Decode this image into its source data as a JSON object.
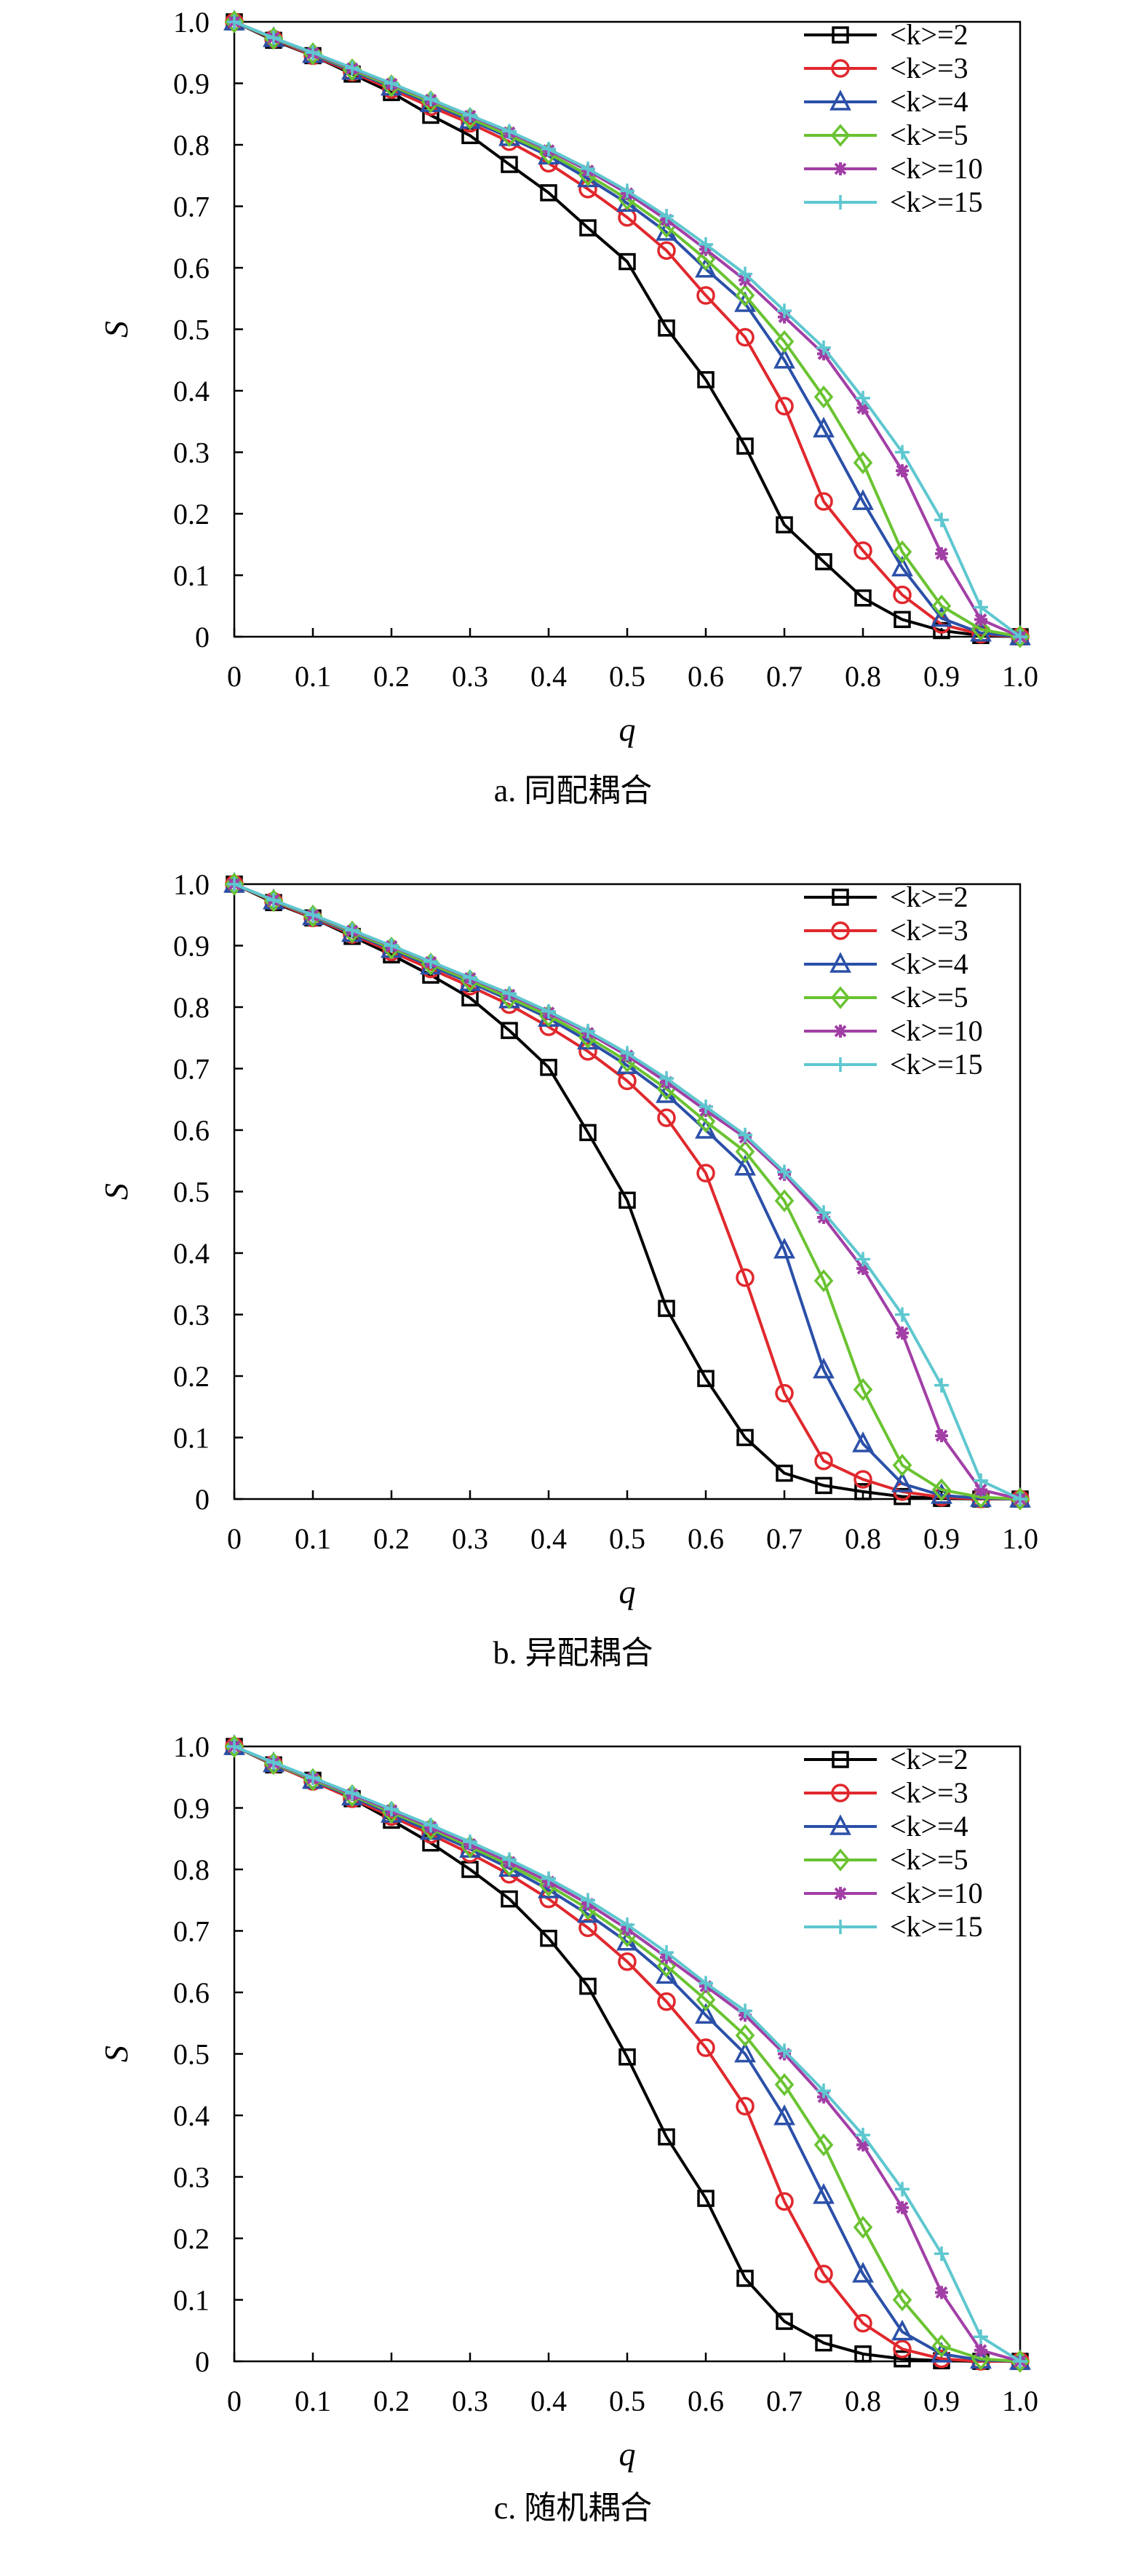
{
  "chart_data": [
    {
      "type": "line",
      "caption": "a. 同配耦合",
      "xlabel": "q",
      "ylabel": "S",
      "xlim": [
        0,
        1.0
      ],
      "ylim": [
        0,
        1.0
      ],
      "x_ticks": [
        "0",
        "0.1",
        "0.2",
        "0.3",
        "0.4",
        "0.5",
        "0.6",
        "0.7",
        "0.8",
        "0.9",
        "1.0"
      ],
      "y_ticks": [
        "0",
        "0.1",
        "0.2",
        "0.3",
        "0.4",
        "0.5",
        "0.6",
        "0.7",
        "0.8",
        "0.9",
        "1.0"
      ],
      "legend_position": "top-right",
      "x": [
        0,
        0.05,
        0.1,
        0.15,
        0.2,
        0.25,
        0.3,
        0.35,
        0.4,
        0.45,
        0.5,
        0.55,
        0.6,
        0.65,
        0.7,
        0.75,
        0.8,
        0.85,
        0.9,
        0.95,
        1.0
      ],
      "series": [
        {
          "name": "<k>=2",
          "color": "#000000",
          "marker": "square",
          "values": [
            1.0,
            0.97,
            0.945,
            0.915,
            0.885,
            0.848,
            0.815,
            0.768,
            0.722,
            0.665,
            0.61,
            0.502,
            0.418,
            0.31,
            0.182,
            0.122,
            0.063,
            0.028,
            0.01,
            0.002,
            0.0
          ]
        },
        {
          "name": "<k>=3",
          "color": "#e0282d",
          "marker": "circle",
          "values": [
            1.0,
            0.972,
            0.945,
            0.918,
            0.89,
            0.862,
            0.835,
            0.805,
            0.77,
            0.728,
            0.682,
            0.628,
            0.555,
            0.487,
            0.375,
            0.22,
            0.14,
            0.068,
            0.02,
            0.004,
            0.0
          ]
        },
        {
          "name": "<k>=4",
          "color": "#2b50a8",
          "marker": "triangle",
          "values": [
            1.0,
            0.973,
            0.947,
            0.92,
            0.894,
            0.867,
            0.84,
            0.812,
            0.782,
            0.745,
            0.705,
            0.658,
            0.598,
            0.542,
            0.45,
            0.338,
            0.22,
            0.112,
            0.03,
            0.006,
            0.0
          ]
        },
        {
          "name": "<k>=5",
          "color": "#6ac332",
          "marker": "diamond",
          "values": [
            1.0,
            0.973,
            0.948,
            0.922,
            0.896,
            0.87,
            0.843,
            0.815,
            0.786,
            0.751,
            0.712,
            0.667,
            0.614,
            0.555,
            0.48,
            0.39,
            0.283,
            0.138,
            0.05,
            0.012,
            0.0
          ]
        },
        {
          "name": "<k>=10",
          "color": "#a23fa6",
          "marker": "star",
          "values": [
            1.0,
            0.974,
            0.949,
            0.924,
            0.899,
            0.873,
            0.847,
            0.82,
            0.791,
            0.758,
            0.721,
            0.678,
            0.63,
            0.58,
            0.52,
            0.46,
            0.372,
            0.27,
            0.135,
            0.028,
            0.0
          ]
        },
        {
          "name": "<k>=15",
          "color": "#5ec7cf",
          "marker": "plus",
          "values": [
            1.0,
            0.974,
            0.95,
            0.925,
            0.9,
            0.874,
            0.848,
            0.822,
            0.793,
            0.761,
            0.725,
            0.684,
            0.638,
            0.59,
            0.53,
            0.47,
            0.388,
            0.3,
            0.19,
            0.048,
            0.0
          ]
        }
      ]
    },
    {
      "type": "line",
      "caption": "b. 异配耦合",
      "xlabel": "q",
      "ylabel": "S",
      "xlim": [
        0,
        1.0
      ],
      "ylim": [
        0,
        1.0
      ],
      "x_ticks": [
        "0",
        "0.1",
        "0.2",
        "0.3",
        "0.4",
        "0.5",
        "0.6",
        "0.7",
        "0.8",
        "0.9",
        "1.0"
      ],
      "y_ticks": [
        "0",
        "0.1",
        "0.2",
        "0.3",
        "0.4",
        "0.5",
        "0.6",
        "0.7",
        "0.8",
        "0.9",
        "1.0"
      ],
      "legend_position": "top-right",
      "x": [
        0,
        0.05,
        0.1,
        0.15,
        0.2,
        0.25,
        0.3,
        0.35,
        0.4,
        0.45,
        0.5,
        0.55,
        0.6,
        0.65,
        0.7,
        0.75,
        0.8,
        0.85,
        0.9,
        0.95,
        1.0
      ],
      "series": [
        {
          "name": "<k>=2",
          "color": "#000000",
          "marker": "square",
          "values": [
            1.0,
            0.97,
            0.945,
            0.915,
            0.885,
            0.852,
            0.815,
            0.762,
            0.702,
            0.596,
            0.486,
            0.31,
            0.196,
            0.1,
            0.042,
            0.022,
            0.012,
            0.004,
            0.001,
            0.0,
            0.0
          ]
        },
        {
          "name": "<k>=3",
          "color": "#e0282d",
          "marker": "circle",
          "values": [
            1.0,
            0.972,
            0.945,
            0.918,
            0.89,
            0.862,
            0.834,
            0.804,
            0.768,
            0.728,
            0.68,
            0.62,
            0.53,
            0.36,
            0.172,
            0.062,
            0.032,
            0.012,
            0.003,
            0.0,
            0.0
          ]
        },
        {
          "name": "<k>=4",
          "color": "#2b50a8",
          "marker": "triangle",
          "values": [
            1.0,
            0.973,
            0.947,
            0.92,
            0.894,
            0.867,
            0.84,
            0.812,
            0.782,
            0.745,
            0.705,
            0.658,
            0.6,
            0.54,
            0.405,
            0.21,
            0.09,
            0.025,
            0.006,
            0.001,
            0.0
          ]
        },
        {
          "name": "<k>=5",
          "color": "#6ac332",
          "marker": "diamond",
          "values": [
            1.0,
            0.973,
            0.948,
            0.922,
            0.896,
            0.87,
            0.843,
            0.815,
            0.786,
            0.751,
            0.712,
            0.667,
            0.614,
            0.565,
            0.485,
            0.355,
            0.178,
            0.055,
            0.015,
            0.003,
            0.0
          ]
        },
        {
          "name": "<k>=10",
          "color": "#a23fa6",
          "marker": "star",
          "values": [
            1.0,
            0.974,
            0.949,
            0.924,
            0.899,
            0.873,
            0.847,
            0.82,
            0.791,
            0.758,
            0.721,
            0.678,
            0.632,
            0.588,
            0.528,
            0.458,
            0.375,
            0.27,
            0.103,
            0.015,
            0.0
          ]
        },
        {
          "name": "<k>=15",
          "color": "#5ec7cf",
          "marker": "plus",
          "values": [
            1.0,
            0.974,
            0.95,
            0.925,
            0.9,
            0.874,
            0.848,
            0.822,
            0.793,
            0.761,
            0.725,
            0.684,
            0.638,
            0.592,
            0.532,
            0.466,
            0.39,
            0.3,
            0.185,
            0.03,
            0.0
          ]
        }
      ]
    },
    {
      "type": "line",
      "caption": "c. 随机耦合",
      "xlabel": "q",
      "ylabel": "S",
      "xlim": [
        0,
        1.0
      ],
      "ylim": [
        0,
        1.0
      ],
      "x_ticks": [
        "0",
        "0.1",
        "0.2",
        "0.3",
        "0.4",
        "0.5",
        "0.6",
        "0.7",
        "0.8",
        "0.9",
        "1.0"
      ],
      "y_ticks": [
        "0",
        "0.1",
        "0.2",
        "0.3",
        "0.4",
        "0.5",
        "0.6",
        "0.7",
        "0.8",
        "0.9",
        "1.0"
      ],
      "legend_position": "top-right",
      "x": [
        0,
        0.05,
        0.1,
        0.15,
        0.2,
        0.25,
        0.3,
        0.35,
        0.4,
        0.45,
        0.5,
        0.55,
        0.6,
        0.65,
        0.7,
        0.75,
        0.8,
        0.85,
        0.9,
        0.95,
        1.0
      ],
      "series": [
        {
          "name": "<k>=2",
          "color": "#000000",
          "marker": "square",
          "values": [
            1.0,
            0.97,
            0.945,
            0.915,
            0.88,
            0.843,
            0.8,
            0.752,
            0.688,
            0.61,
            0.495,
            0.365,
            0.265,
            0.135,
            0.065,
            0.03,
            0.012,
            0.004,
            0.001,
            0.0,
            0.0
          ]
        },
        {
          "name": "<k>=3",
          "color": "#e0282d",
          "marker": "circle",
          "values": [
            1.0,
            0.971,
            0.943,
            0.915,
            0.886,
            0.857,
            0.826,
            0.792,
            0.752,
            0.705,
            0.65,
            0.585,
            0.51,
            0.415,
            0.26,
            0.142,
            0.062,
            0.02,
            0.004,
            0.0,
            0.0
          ]
        },
        {
          "name": "<k>=4",
          "color": "#2b50a8",
          "marker": "triangle",
          "values": [
            1.0,
            0.972,
            0.945,
            0.918,
            0.89,
            0.862,
            0.833,
            0.802,
            0.767,
            0.727,
            0.682,
            0.628,
            0.563,
            0.5,
            0.398,
            0.27,
            0.142,
            0.048,
            0.012,
            0.002,
            0.0
          ]
        },
        {
          "name": "<k>=5",
          "color": "#6ac332",
          "marker": "diamond",
          "values": [
            1.0,
            0.972,
            0.946,
            0.92,
            0.893,
            0.866,
            0.837,
            0.807,
            0.774,
            0.736,
            0.692,
            0.643,
            0.588,
            0.53,
            0.45,
            0.352,
            0.218,
            0.1,
            0.025,
            0.004,
            0.0
          ]
        },
        {
          "name": "<k>=10",
          "color": "#a23fa6",
          "marker": "star",
          "values": [
            1.0,
            0.973,
            0.948,
            0.922,
            0.896,
            0.869,
            0.841,
            0.812,
            0.78,
            0.744,
            0.703,
            0.657,
            0.61,
            0.563,
            0.5,
            0.43,
            0.352,
            0.25,
            0.112,
            0.018,
            0.0
          ]
        },
        {
          "name": "<k>=15",
          "color": "#5ec7cf",
          "marker": "plus",
          "values": [
            1.0,
            0.974,
            0.949,
            0.924,
            0.898,
            0.872,
            0.845,
            0.816,
            0.785,
            0.75,
            0.71,
            0.665,
            0.615,
            0.57,
            0.505,
            0.44,
            0.368,
            0.28,
            0.175,
            0.04,
            0.0
          ]
        }
      ]
    }
  ]
}
